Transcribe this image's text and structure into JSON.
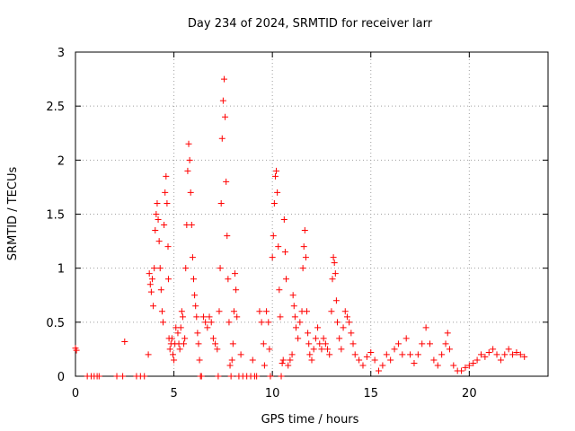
{
  "chart_data": {
    "type": "scatter",
    "title": "Day 234 of 2024, SRMTID for receiver larr",
    "xlabel": "GPS time / hours",
    "ylabel": "SRMTID / TECUs",
    "xlim": [
      0,
      24
    ],
    "ylim": [
      0,
      3
    ],
    "x_ticks": [
      0,
      5,
      10,
      15,
      20
    ],
    "x_tick_labels": [
      "0",
      "5",
      "10",
      "15",
      "20"
    ],
    "y_ticks": [
      0,
      0.5,
      1,
      1.5,
      2,
      2.5,
      3
    ],
    "y_tick_labels": [
      "0",
      "0.5",
      "1",
      "1.5",
      "2",
      "2.5",
      "3"
    ],
    "grid": true,
    "marker": "+",
    "color": "#ff0000",
    "series": [
      {
        "name": "SRMTID",
        "points": [
          [
            0.0,
            0.26
          ],
          [
            0.05,
            0.24
          ],
          [
            0.6,
            0.0
          ],
          [
            0.8,
            0.0
          ],
          [
            0.95,
            0.0
          ],
          [
            1.1,
            0.0
          ],
          [
            1.2,
            0.0
          ],
          [
            2.1,
            0.0
          ],
          [
            2.4,
            0.0
          ],
          [
            2.5,
            0.32
          ],
          [
            3.1,
            0.0
          ],
          [
            3.3,
            0.0
          ],
          [
            3.5,
            0.0
          ],
          [
            3.7,
            0.2
          ],
          [
            3.75,
            0.95
          ],
          [
            3.8,
            0.85
          ],
          [
            3.85,
            0.78
          ],
          [
            3.9,
            0.9
          ],
          [
            3.95,
            0.65
          ],
          [
            4.0,
            1.0
          ],
          [
            4.05,
            1.35
          ],
          [
            4.1,
            1.5
          ],
          [
            4.15,
            1.6
          ],
          [
            4.2,
            1.45
          ],
          [
            4.25,
            1.25
          ],
          [
            4.3,
            1.0
          ],
          [
            4.35,
            0.8
          ],
          [
            4.4,
            0.6
          ],
          [
            4.45,
            0.5
          ],
          [
            4.5,
            1.4
          ],
          [
            4.55,
            1.7
          ],
          [
            4.6,
            1.85
          ],
          [
            4.65,
            1.6
          ],
          [
            4.7,
            1.2
          ],
          [
            4.72,
            0.9
          ],
          [
            4.75,
            0.35
          ],
          [
            4.8,
            0.25
          ],
          [
            4.85,
            0.3
          ],
          [
            4.9,
            0.35
          ],
          [
            4.95,
            0.2
          ],
          [
            5.0,
            0.15
          ],
          [
            5.05,
            0.3
          ],
          [
            5.1,
            0.45
          ],
          [
            5.2,
            0.4
          ],
          [
            5.25,
            0.3
          ],
          [
            5.3,
            0.25
          ],
          [
            5.35,
            0.45
          ],
          [
            5.4,
            0.6
          ],
          [
            5.45,
            0.55
          ],
          [
            5.5,
            0.3
          ],
          [
            5.55,
            0.35
          ],
          [
            5.6,
            1.0
          ],
          [
            5.65,
            1.4
          ],
          [
            5.7,
            1.9
          ],
          [
            5.75,
            2.15
          ],
          [
            5.8,
            2.0
          ],
          [
            5.85,
            1.7
          ],
          [
            5.9,
            1.4
          ],
          [
            5.95,
            1.1
          ],
          [
            6.0,
            0.9
          ],
          [
            6.05,
            0.75
          ],
          [
            6.1,
            0.65
          ],
          [
            6.15,
            0.55
          ],
          [
            6.2,
            0.4
          ],
          [
            6.25,
            0.3
          ],
          [
            6.3,
            0.15
          ],
          [
            6.35,
            0.0
          ],
          [
            6.4,
            0.0
          ],
          [
            6.5,
            0.55
          ],
          [
            6.6,
            0.5
          ],
          [
            6.7,
            0.45
          ],
          [
            6.8,
            0.55
          ],
          [
            6.9,
            0.5
          ],
          [
            7.0,
            0.35
          ],
          [
            7.1,
            0.3
          ],
          [
            7.2,
            0.25
          ],
          [
            7.25,
            0.0
          ],
          [
            7.3,
            0.6
          ],
          [
            7.35,
            1.0
          ],
          [
            7.4,
            1.6
          ],
          [
            7.45,
            2.2
          ],
          [
            7.5,
            2.55
          ],
          [
            7.55,
            2.75
          ],
          [
            7.6,
            2.4
          ],
          [
            7.65,
            1.8
          ],
          [
            7.7,
            1.3
          ],
          [
            7.75,
            0.9
          ],
          [
            7.8,
            0.5
          ],
          [
            7.85,
            0.1
          ],
          [
            7.9,
            0.0
          ],
          [
            7.95,
            0.15
          ],
          [
            8.0,
            0.3
          ],
          [
            8.05,
            0.6
          ],
          [
            8.1,
            0.95
          ],
          [
            8.15,
            0.8
          ],
          [
            8.2,
            0.55
          ],
          [
            8.3,
            0.0
          ],
          [
            8.4,
            0.2
          ],
          [
            8.5,
            0.0
          ],
          [
            8.7,
            0.0
          ],
          [
            8.9,
            0.0
          ],
          [
            9.0,
            0.15
          ],
          [
            9.1,
            0.0
          ],
          [
            9.2,
            0.0
          ],
          [
            9.35,
            0.6
          ],
          [
            9.45,
            0.5
          ],
          [
            9.55,
            0.3
          ],
          [
            9.6,
            0.1
          ],
          [
            9.7,
            0.6
          ],
          [
            9.8,
            0.5
          ],
          [
            9.85,
            0.25
          ],
          [
            9.9,
            0.0
          ],
          [
            10.0,
            1.1
          ],
          [
            10.05,
            1.3
          ],
          [
            10.1,
            1.6
          ],
          [
            10.15,
            1.85
          ],
          [
            10.2,
            1.9
          ],
          [
            10.25,
            1.7
          ],
          [
            10.3,
            1.2
          ],
          [
            10.35,
            0.8
          ],
          [
            10.4,
            0.55
          ],
          [
            10.45,
            0.0
          ],
          [
            10.5,
            0.12
          ],
          [
            10.55,
            0.15
          ],
          [
            10.6,
            1.45
          ],
          [
            10.65,
            1.15
          ],
          [
            10.7,
            0.9
          ],
          [
            10.8,
            0.1
          ],
          [
            10.9,
            0.15
          ],
          [
            11.0,
            0.2
          ],
          [
            11.05,
            0.75
          ],
          [
            11.1,
            0.65
          ],
          [
            11.15,
            0.55
          ],
          [
            11.2,
            0.45
          ],
          [
            11.3,
            0.35
          ],
          [
            11.4,
            0.5
          ],
          [
            11.5,
            0.6
          ],
          [
            11.55,
            1.0
          ],
          [
            11.6,
            1.2
          ],
          [
            11.65,
            1.35
          ],
          [
            11.7,
            1.1
          ],
          [
            11.75,
            0.6
          ],
          [
            11.8,
            0.4
          ],
          [
            11.85,
            0.3
          ],
          [
            11.9,
            0.2
          ],
          [
            12.0,
            0.15
          ],
          [
            12.1,
            0.25
          ],
          [
            12.2,
            0.35
          ],
          [
            12.3,
            0.45
          ],
          [
            12.4,
            0.3
          ],
          [
            12.5,
            0.25
          ],
          [
            12.6,
            0.35
          ],
          [
            12.7,
            0.3
          ],
          [
            12.8,
            0.25
          ],
          [
            12.9,
            0.2
          ],
          [
            13.0,
            0.6
          ],
          [
            13.05,
            0.9
          ],
          [
            13.1,
            1.1
          ],
          [
            13.15,
            1.05
          ],
          [
            13.2,
            0.95
          ],
          [
            13.25,
            0.7
          ],
          [
            13.3,
            0.5
          ],
          [
            13.4,
            0.35
          ],
          [
            13.5,
            0.25
          ],
          [
            13.6,
            0.45
          ],
          [
            13.7,
            0.6
          ],
          [
            13.8,
            0.55
          ],
          [
            13.9,
            0.5
          ],
          [
            14.0,
            0.4
          ],
          [
            14.1,
            0.3
          ],
          [
            14.2,
            0.2
          ],
          [
            14.4,
            0.15
          ],
          [
            14.6,
            0.1
          ],
          [
            14.8,
            0.18
          ],
          [
            15.0,
            0.22
          ],
          [
            15.2,
            0.15
          ],
          [
            15.4,
            0.05
          ],
          [
            15.6,
            0.1
          ],
          [
            15.8,
            0.2
          ],
          [
            16.0,
            0.15
          ],
          [
            16.2,
            0.25
          ],
          [
            16.4,
            0.3
          ],
          [
            16.6,
            0.2
          ],
          [
            16.8,
            0.35
          ],
          [
            17.0,
            0.2
          ],
          [
            17.2,
            0.12
          ],
          [
            17.4,
            0.2
          ],
          [
            17.6,
            0.3
          ],
          [
            17.8,
            0.45
          ],
          [
            18.0,
            0.3
          ],
          [
            18.2,
            0.15
          ],
          [
            18.4,
            0.1
          ],
          [
            18.6,
            0.2
          ],
          [
            18.8,
            0.3
          ],
          [
            18.9,
            0.4
          ],
          [
            19.0,
            0.25
          ],
          [
            19.2,
            0.1
          ],
          [
            19.4,
            0.05
          ],
          [
            19.6,
            0.05
          ],
          [
            19.8,
            0.08
          ],
          [
            20.0,
            0.1
          ],
          [
            20.2,
            0.12
          ],
          [
            20.4,
            0.15
          ],
          [
            20.6,
            0.2
          ],
          [
            20.8,
            0.18
          ],
          [
            21.0,
            0.22
          ],
          [
            21.2,
            0.25
          ],
          [
            21.4,
            0.2
          ],
          [
            21.6,
            0.15
          ],
          [
            21.8,
            0.2
          ],
          [
            22.0,
            0.25
          ],
          [
            22.2,
            0.2
          ],
          [
            22.4,
            0.22
          ],
          [
            22.6,
            0.2
          ],
          [
            22.8,
            0.18
          ]
        ]
      }
    ]
  }
}
